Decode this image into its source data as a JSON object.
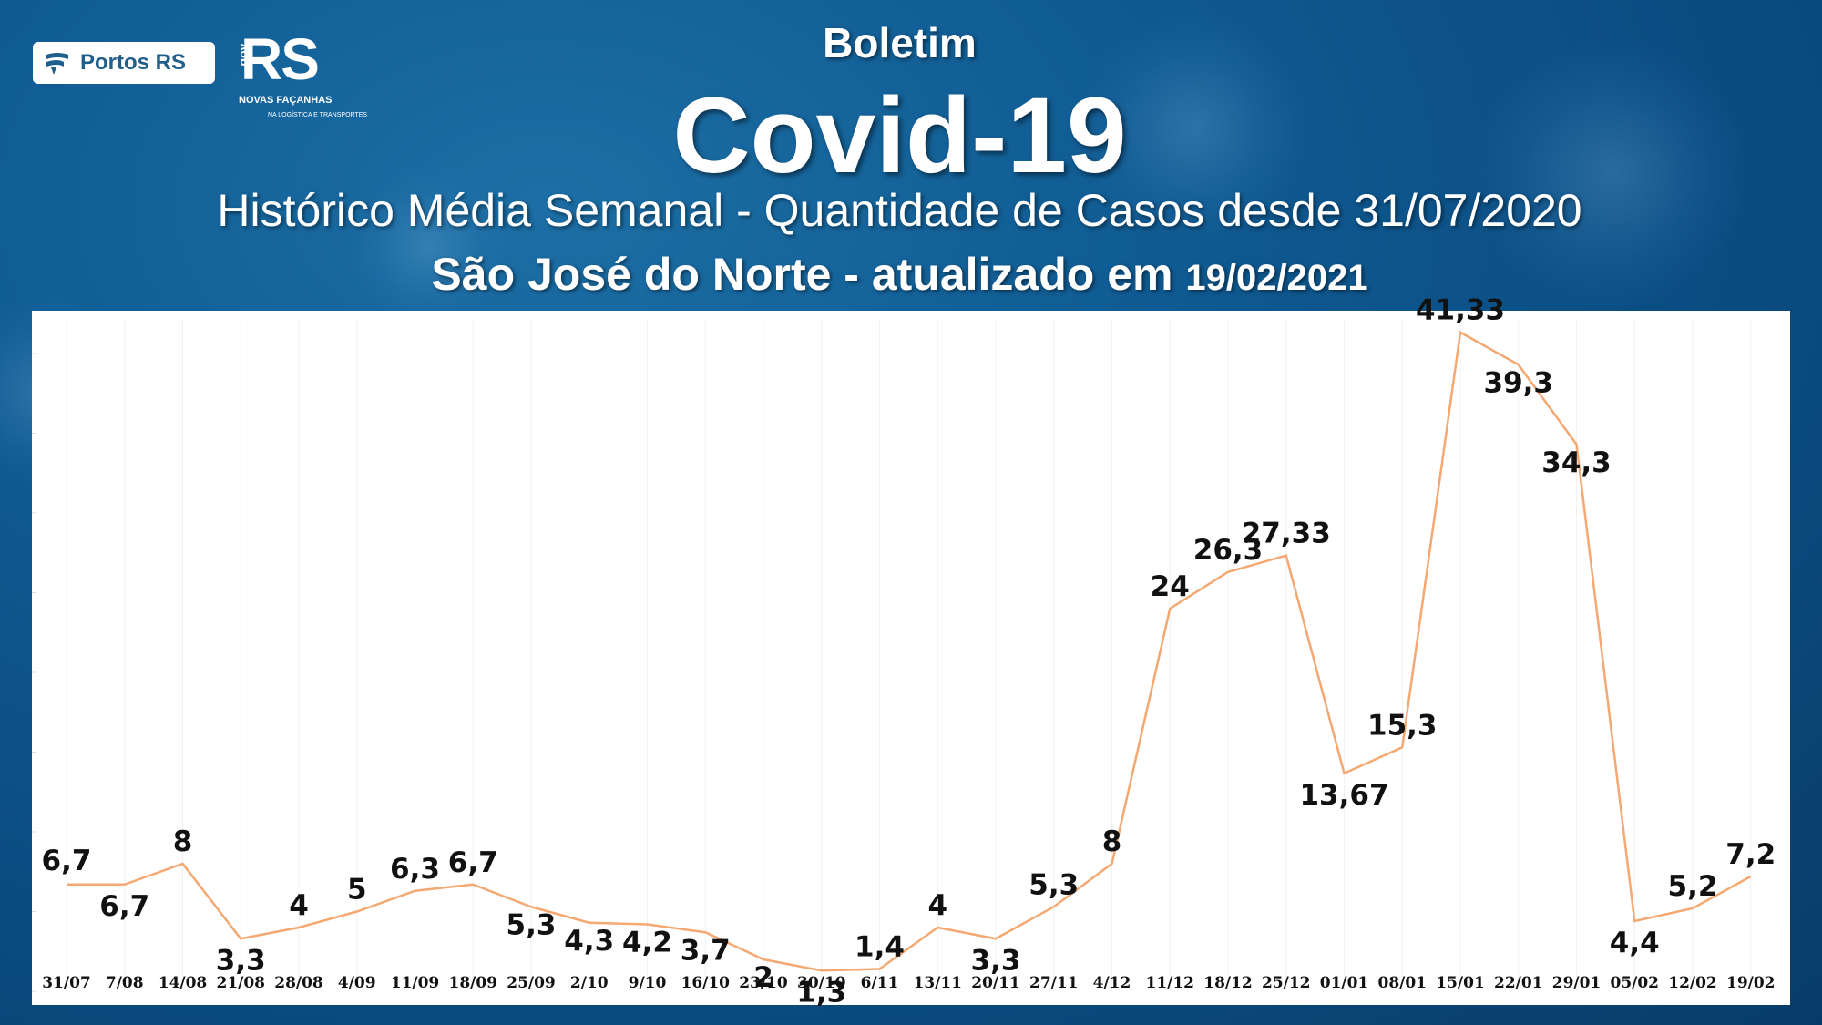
{
  "header": {
    "logo_text": "Portos RS",
    "rs_logo_big": "RS",
    "rs_logo_gov": "gov",
    "rs_logo_sub1": "NOVAS FAÇANHAS",
    "rs_logo_sub2": "NA LOGÍSTICA E TRANSPORTES",
    "title_small": "Boletim",
    "title_big": "Covid-19",
    "subtitle": "Histórico Média Semanal - Quantidade de Casos desde 31/07/2020",
    "location": "São José do Norte - atualizado em",
    "update_date": "19/02/2021"
  },
  "colors": {
    "background": "#0f5a92",
    "line": "#f4a872",
    "panel": "#ffffff"
  },
  "chart_data": {
    "type": "line",
    "x": [
      "31/07",
      "7/08",
      "14/08",
      "21/08",
      "28/08",
      "4/09",
      "11/09",
      "18/09",
      "25/09",
      "2/10",
      "9/10",
      "16/10",
      "23/10",
      "30/10",
      "6/11",
      "13/11",
      "20/11",
      "27/11",
      "4/12",
      "11/12",
      "18/12",
      "25/12",
      "01/01",
      "08/01",
      "15/01",
      "22/01",
      "29/01",
      "05/02",
      "12/02",
      "19/02"
    ],
    "values": [
      6.7,
      6.7,
      8,
      3.3,
      4,
      5,
      6.3,
      6.7,
      5.3,
      4.3,
      4.2,
      3.7,
      2,
      1.3,
      1.4,
      4,
      3.3,
      5.3,
      8,
      24,
      26.3,
      27.33,
      13.67,
      15.3,
      41.33,
      39.3,
      34.3,
      4.4,
      5.2,
      7.2
    ],
    "labels": [
      "6,7",
      "6,7",
      "8",
      "3,3",
      "4",
      "5",
      "6,3",
      "6,7",
      "5,3",
      "4,3",
      "4,2",
      "3,7",
      "2",
      "1,3",
      "1,4",
      "4",
      "3,3",
      "5,3",
      "8",
      "24",
      "26,3",
      "27,33",
      "13,67",
      "15,3",
      "41,33",
      "39,3",
      "34,3",
      "4,4",
      "5,2",
      "7,2"
    ],
    "ylim": [
      0,
      45
    ],
    "grid": true
  }
}
